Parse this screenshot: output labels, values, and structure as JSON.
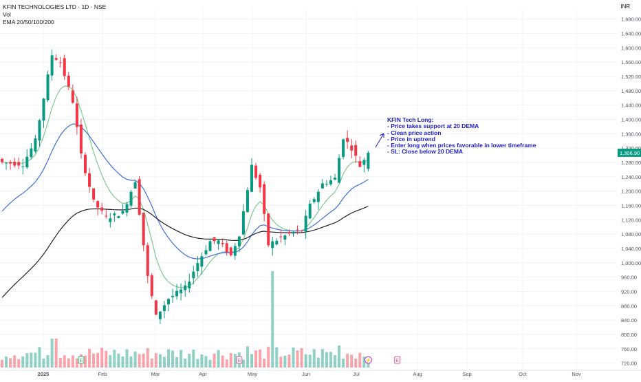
{
  "legend": {
    "title": "KFIN TECHNOLOGIES LTD · 1D · NSE",
    "vol": "Vol",
    "ema": "EMA 20/50/100/200"
  },
  "currency": "INR",
  "last_price": "1,306.90",
  "colors": {
    "up": "#089981",
    "down": "#f23645",
    "ema20": "#7fc98d",
    "ema50": "#3d6fdc",
    "ema200": "#222222",
    "grid": "#f0f3fa",
    "axis_text": "#50535e",
    "price_tag": "#089981",
    "note": "#1c1cc8",
    "earnings_badge": "#e05a8c",
    "dividend_badge": "#2bb673"
  },
  "annotation": {
    "title": "KFIN Tech Long:",
    "lines": [
      "- Price takes support at 20 DEMA",
      "- Clean price action",
      "- Price in uptrend",
      "- Enter long when prices favorable in lower timeframe",
      "- SL: Close below 20 DEMA"
    ]
  },
  "chart_data": {
    "type": "candlestick",
    "x_axis_labels": [
      "2025",
      "Feb",
      "Mar",
      "Apr",
      "May",
      "Jun",
      "Jul",
      "Aug",
      "Sep",
      "Oct",
      "Nov"
    ],
    "y_ticks": [
      720,
      760,
      800,
      840,
      880,
      920,
      960,
      1000,
      1040,
      1080,
      1120,
      1160,
      1200,
      1240,
      1280,
      1320,
      1360,
      1400,
      1440,
      1480,
      1520,
      1560,
      1600,
      1640,
      1680
    ],
    "y_tick_labels": [
      "720.00",
      "760.00",
      "800.00",
      "840.00",
      "880.00",
      "920.00",
      "960.00",
      "1,000.00",
      "1,040.00",
      "1,080.00",
      "1,120.00",
      "1,160.00",
      "1,200.00",
      "1,240.00",
      "1,280.00",
      "1,320.00",
      "1,360.00",
      "1,400.00",
      "1,440.00",
      "1,480.00",
      "1,520.00",
      "1,560.00",
      "1,600.00",
      "1,640.00",
      "1,680.00"
    ],
    "ylim": [
      700,
      1710
    ],
    "close_anchors": [
      [
        0,
        1280
      ],
      [
        5,
        1275
      ],
      [
        8,
        1340
      ],
      [
        12,
        1580
      ],
      [
        14,
        1560
      ],
      [
        17,
        1450
      ],
      [
        19,
        1300
      ],
      [
        22,
        1170
      ],
      [
        25,
        1125
      ],
      [
        29,
        1140
      ],
      [
        32,
        1230
      ],
      [
        35,
        960
      ],
      [
        37,
        850
      ],
      [
        40,
        900
      ],
      [
        44,
        930
      ],
      [
        47,
        1000
      ],
      [
        50,
        1060
      ],
      [
        52,
        1060
      ],
      [
        55,
        1020
      ],
      [
        57,
        1080
      ],
      [
        60,
        1270
      ],
      [
        62,
        1210
      ],
      [
        64,
        1050
      ],
      [
        67,
        1070
      ],
      [
        70,
        1085
      ],
      [
        72,
        1090
      ],
      [
        74,
        1160
      ],
      [
        77,
        1220
      ],
      [
        80,
        1235
      ],
      [
        82,
        1350
      ],
      [
        84,
        1320
      ],
      [
        86,
        1270
      ],
      [
        88,
        1306.9
      ]
    ],
    "events": [
      {
        "type": "dividend",
        "label": "E",
        "bar": 19
      },
      {
        "type": "earnings",
        "label": "E",
        "bar": 57
      },
      {
        "type": "split",
        "label": "⚡",
        "bar": 88
      },
      {
        "type": "earnings",
        "label": "E",
        "bar": 95
      }
    ]
  }
}
